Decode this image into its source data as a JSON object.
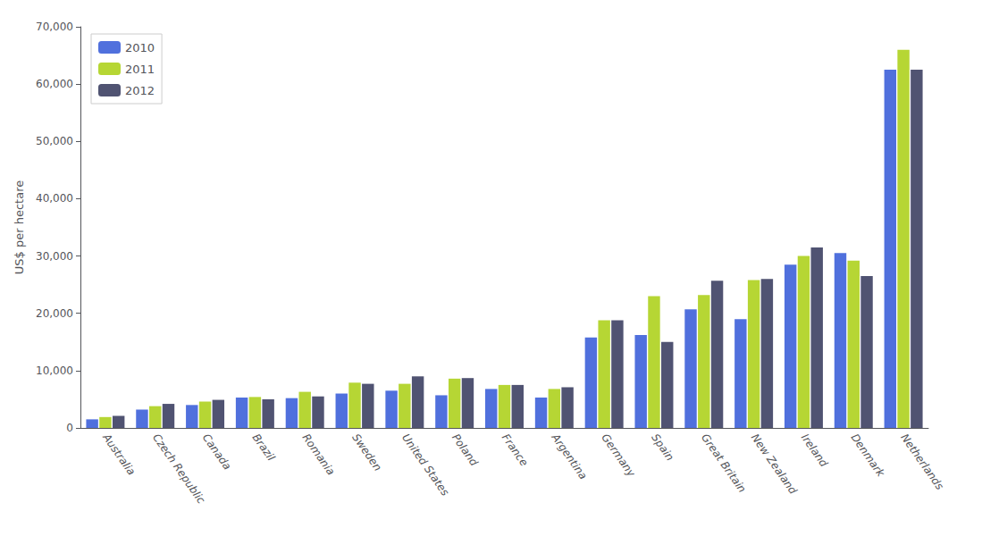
{
  "chart_data": {
    "type": "bar",
    "categories": [
      "Australia",
      "Czech Republic",
      "Canada",
      "Brazil",
      "Romania",
      "Sweden",
      "United States",
      "Poland",
      "France",
      "Argentina",
      "Germany",
      "Spain",
      "Great Britain",
      "New Zealand",
      "Ireland",
      "Denmark",
      "Netherlands"
    ],
    "series": [
      {
        "name": "2010",
        "values": [
          1500,
          3200,
          4000,
          5300,
          5200,
          6000,
          6500,
          5700,
          6800,
          5300,
          15800,
          16200,
          20700,
          19000,
          28500,
          30500,
          62500
        ]
      },
      {
        "name": "2011",
        "values": [
          1900,
          3800,
          4600,
          5400,
          6300,
          7900,
          7700,
          8600,
          7500,
          6800,
          18800,
          23000,
          23200,
          25800,
          30000,
          29200,
          66000
        ]
      },
      {
        "name": "2012",
        "values": [
          2100,
          4200,
          4900,
          5000,
          5500,
          7700,
          9000,
          8700,
          7500,
          7100,
          18800,
          15000,
          25700,
          26000,
          31500,
          26500,
          62500
        ]
      }
    ],
    "ylabel": "US$ per hectare",
    "ylim": [
      0,
      70000
    ],
    "yticks": [
      0,
      {
        "value": 10000,
        "label": "10,000"
      },
      {
        "value": 20000,
        "label": "20,000"
      },
      {
        "value": 30000,
        "label": "30,000"
      },
      {
        "value": 40000,
        "label": "40,000"
      },
      {
        "value": 50000,
        "label": "50,000"
      },
      {
        "value": 60000,
        "label": "60,000"
      },
      {
        "value": 70000,
        "label": "70,000"
      }
    ],
    "grid": false,
    "legend": "upper left"
  }
}
